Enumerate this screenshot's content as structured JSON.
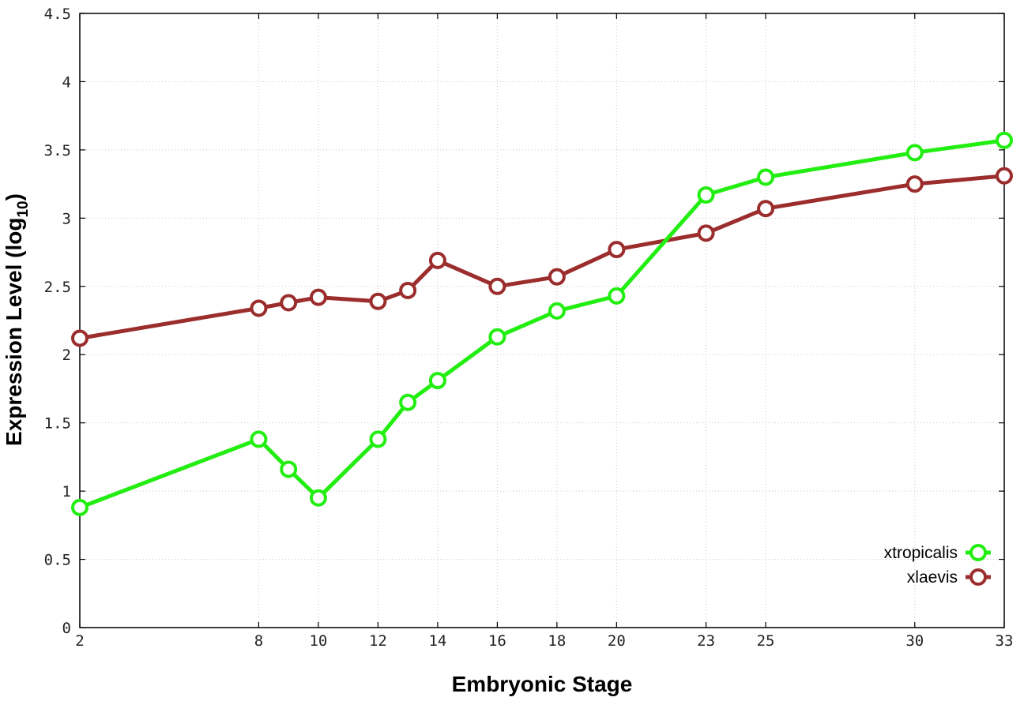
{
  "chart_data": {
    "type": "line",
    "xlabel": "Embryonic Stage",
    "ylabel": "Expression Level (log",
    "ylabel_sub": "10",
    "ylabel_end": ")",
    "xlim": [
      2,
      33
    ],
    "ylim": [
      0,
      4.5
    ],
    "grid": true,
    "legend_position": "bottom-right",
    "xticks": [
      2,
      8,
      10,
      12,
      14,
      16,
      18,
      20,
      23,
      25,
      30,
      33
    ],
    "yticks": [
      0,
      0.5,
      1,
      1.5,
      2,
      2.5,
      3,
      3.5,
      4,
      4.5
    ],
    "ytick_labels": [
      "0",
      "0.5",
      "1",
      "1.5",
      "2",
      "2.5",
      "3",
      "3.5",
      "4",
      "4.5"
    ],
    "x": [
      2,
      8,
      9,
      10,
      12,
      13,
      14,
      16,
      18,
      20,
      23,
      25,
      30,
      33
    ],
    "series": [
      {
        "name": "xtropicalis",
        "color": "#22ee11",
        "values": [
          0.88,
          1.38,
          1.16,
          0.95,
          1.38,
          1.65,
          1.81,
          2.13,
          2.32,
          2.43,
          3.17,
          3.3,
          3.48,
          3.57
        ]
      },
      {
        "name": "xlaevis",
        "color": "#9b2d2d",
        "values": [
          2.12,
          2.34,
          2.38,
          2.42,
          2.39,
          2.47,
          2.69,
          2.5,
          2.57,
          2.77,
          2.89,
          3.07,
          3.25,
          3.31
        ]
      }
    ]
  }
}
